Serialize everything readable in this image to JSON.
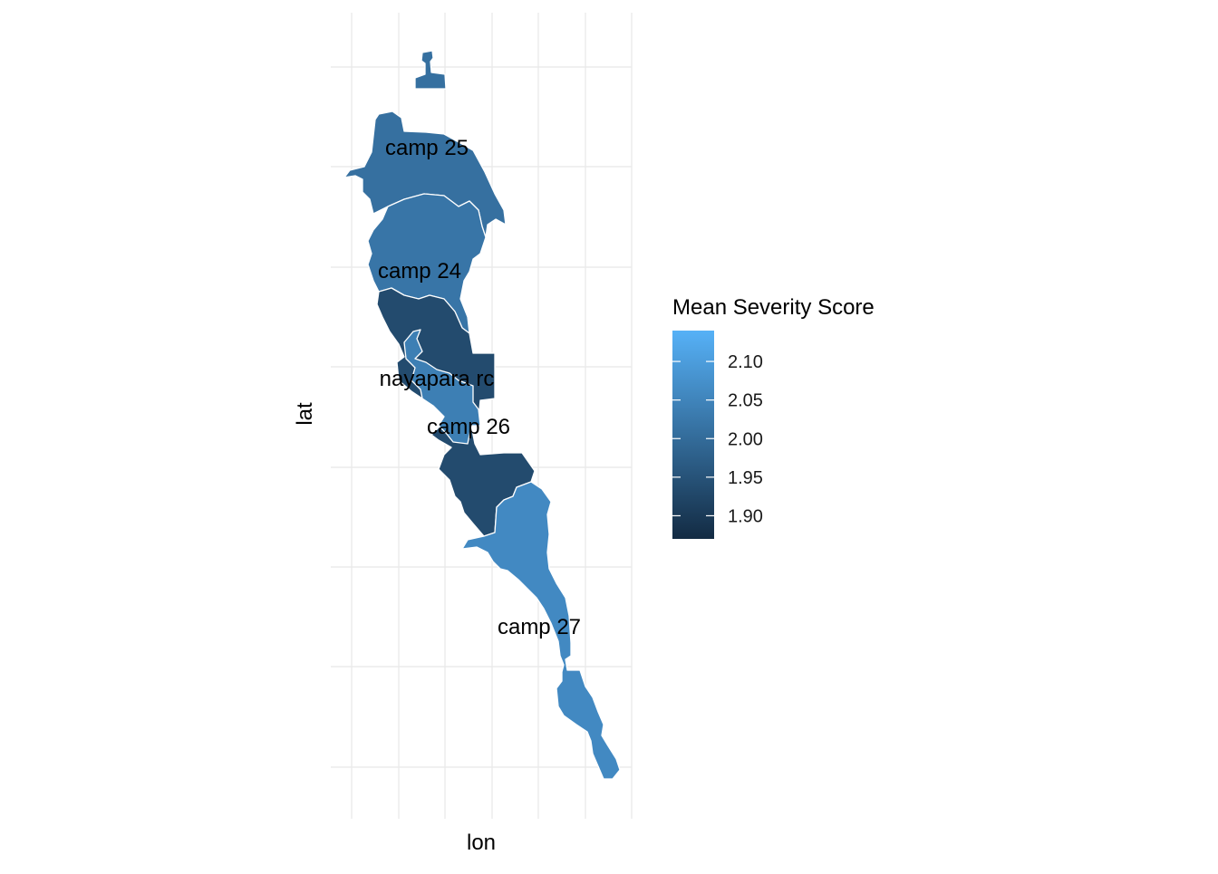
{
  "map": {
    "xlabel": "lon",
    "ylabel": "lat",
    "regions": [
      {
        "id": "camp-25-north",
        "label": "",
        "score": 2.01
      },
      {
        "id": "camp-25",
        "label": "camp 25",
        "score": 2.01
      },
      {
        "id": "camp-24",
        "label": "camp 24",
        "score": 2.02
      },
      {
        "id": "nayapara-rc",
        "label": "nayapara rc",
        "score": 1.935
      },
      {
        "id": "camp-26",
        "label": "camp 26",
        "score": 2.04
      },
      {
        "id": "camp-27",
        "label": "camp 27",
        "score": 2.06
      }
    ],
    "labels": [
      {
        "text": "camp 25"
      },
      {
        "text": "camp 24"
      },
      {
        "text": "nayapara rc"
      },
      {
        "text": "camp 26"
      },
      {
        "text": "camp 27"
      }
    ]
  },
  "legend": {
    "title": "Mean Severity Score",
    "min": 1.87,
    "max": 2.14,
    "color_low": "#132b43",
    "color_high": "#56b1f7",
    "ticks": [
      "2.10",
      "2.05",
      "2.00",
      "1.95",
      "1.90"
    ],
    "tick_values": [
      2.1,
      2.05,
      2.0,
      1.95,
      1.9
    ]
  },
  "colors": {
    "border": "#ffffff",
    "grid": "#ebebeb",
    "text": "#000000"
  }
}
